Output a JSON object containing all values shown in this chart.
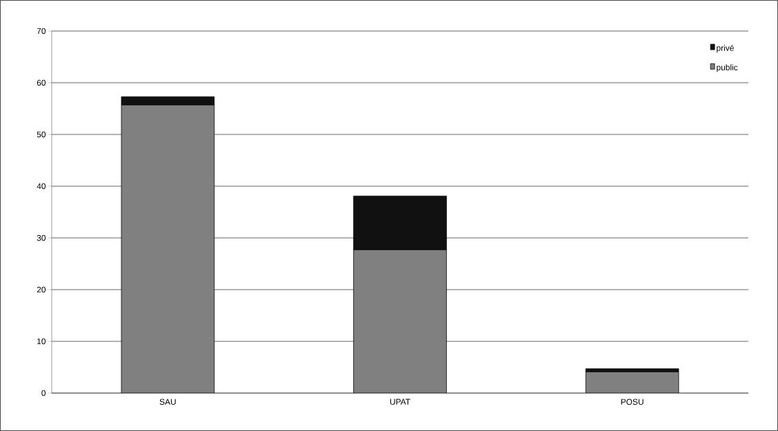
{
  "chart_data": {
    "type": "bar",
    "stacked": true,
    "categories": [
      "SAU",
      "UPAT",
      "POSU"
    ],
    "series": [
      {
        "name": "public",
        "color": "#808080",
        "values": [
          55.7,
          27.7,
          4.1
        ]
      },
      {
        "name": "privé",
        "color": "#111111",
        "values": [
          1.6,
          10.4,
          0.6
        ]
      }
    ],
    "ylim": [
      0,
      70
    ],
    "yticks": [
      0,
      10,
      20,
      30,
      40,
      50,
      60,
      70
    ],
    "grid": "y",
    "legend": "top right"
  }
}
